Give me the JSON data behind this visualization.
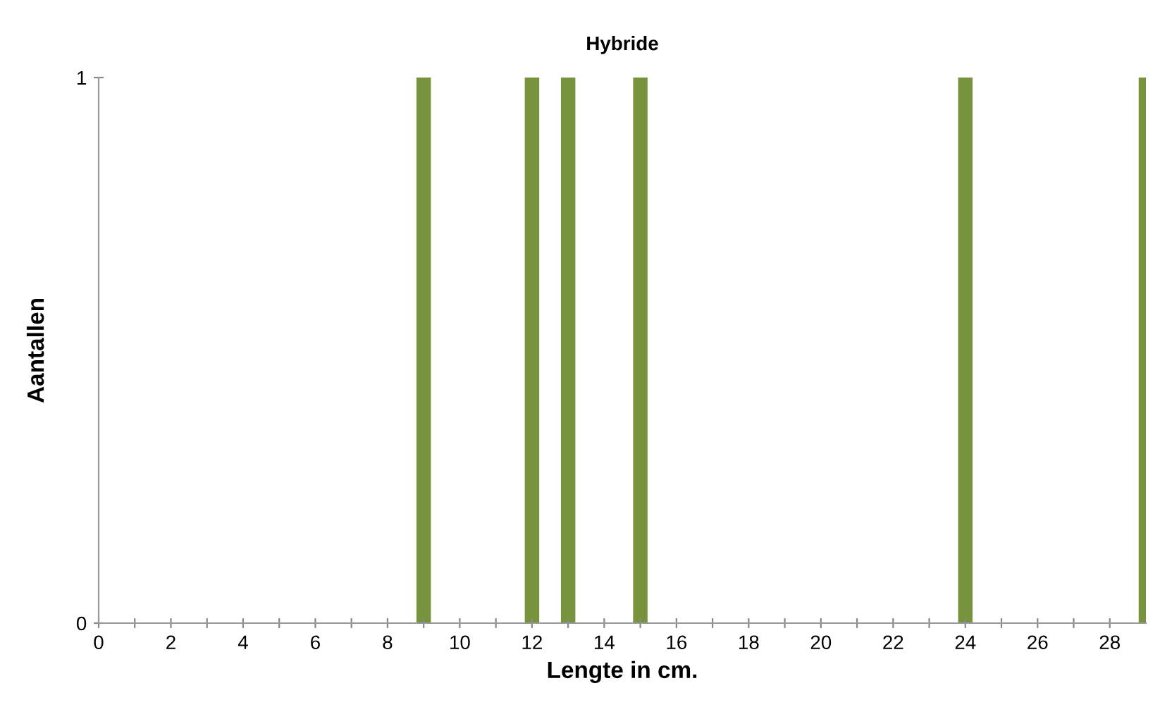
{
  "chart_data": {
    "type": "bar",
    "title": "Hybride",
    "xlabel": "Lengte in cm.",
    "ylabel": "Aantallen",
    "x": [
      9,
      12,
      13,
      15,
      24,
      29
    ],
    "values": [
      1,
      1,
      1,
      1,
      1,
      1
    ],
    "color": "#77933c",
    "xlim": [
      0,
      29
    ],
    "xticks": [
      0,
      {
        "value": 1,
        "label": null
      },
      2,
      {
        "value": 3,
        "label": null
      },
      4,
      {
        "value": 5,
        "label": null
      },
      6,
      {
        "value": 7,
        "label": null
      },
      8,
      {
        "value": 9,
        "label": null
      },
      10,
      {
        "value": 11,
        "label": null
      },
      12,
      {
        "value": 13,
        "label": null
      },
      14,
      {
        "value": 15,
        "label": null
      },
      16,
      {
        "value": 17,
        "label": null
      },
      18,
      {
        "value": 19,
        "label": null
      },
      20,
      {
        "value": 21,
        "label": null
      },
      22,
      {
        "value": 23,
        "label": null
      },
      24,
      {
        "value": 25,
        "label": null
      },
      26,
      {
        "value": 27,
        "label": null
      },
      28
    ],
    "ylim": [
      0,
      1
    ],
    "yticks": [
      0,
      1
    ],
    "grid": false,
    "legend": false
  }
}
